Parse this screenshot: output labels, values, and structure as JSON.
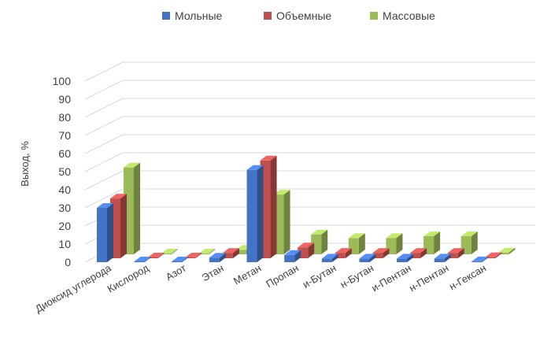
{
  "chart_data": {
    "type": "bar",
    "style": "3d-clustered-column",
    "title": "",
    "xlabel": "",
    "ylabel": "Выход, %",
    "ylim": [
      0,
      100
    ],
    "yticks": [
      0,
      10,
      20,
      30,
      40,
      50,
      60,
      70,
      80,
      90,
      100
    ],
    "grid": true,
    "legend_position": "top",
    "categories": [
      "Диоксид углерода",
      "Кислород",
      "Азот",
      "Этан",
      "Метан",
      "Пропан",
      "и-Бутан",
      "н-Бутан",
      "и-Пентан",
      "н-Пентан",
      "н-Гексан"
    ],
    "series": [
      {
        "name": "Мольные",
        "color": "#4472C4",
        "values": [
          30,
          0.2,
          0.3,
          2.5,
          51,
          4,
          2,
          2,
          2,
          2,
          0.5
        ]
      },
      {
        "name": "Объемные",
        "color": "#C0504D",
        "values": [
          33,
          0.2,
          0.3,
          3,
          54,
          6,
          3,
          3,
          3,
          3,
          0.6
        ]
      },
      {
        "name": "Массовые",
        "color": "#9BBB59",
        "values": [
          48,
          0.2,
          0.3,
          2.5,
          33,
          11,
          9,
          9,
          10,
          10,
          1
        ]
      }
    ]
  }
}
